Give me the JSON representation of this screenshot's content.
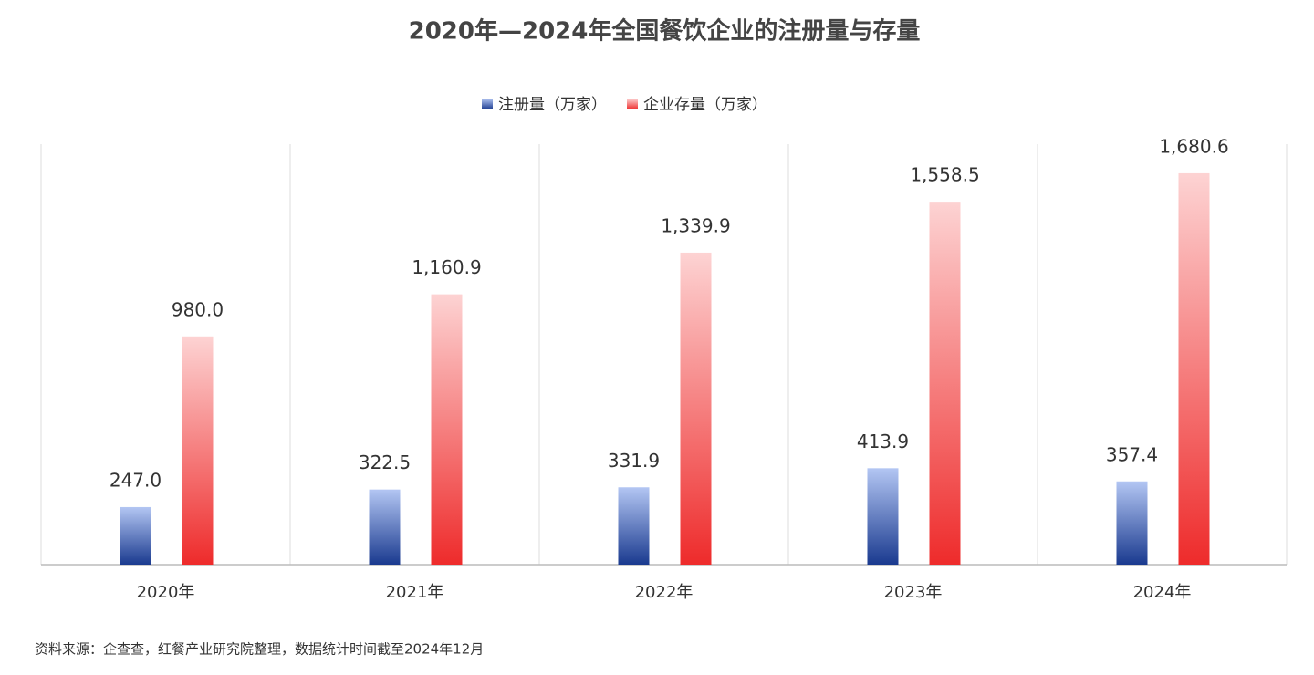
{
  "chart_data": {
    "type": "bar",
    "title": "2020年—2024年全国餐饮企业的注册量与存量",
    "categories": [
      "2020年",
      "2021年",
      "2022年",
      "2023年",
      "2024年"
    ],
    "series": [
      {
        "name": "注册量（万家）",
        "color": "#1a3a8f",
        "values": [
          247.0,
          322.5,
          331.9,
          413.9,
          357.4
        ],
        "value_labels": [
          "247.0",
          "322.5",
          "331.9",
          "413.9",
          "357.4"
        ]
      },
      {
        "name": "企业存量（万家）",
        "color": "#ee2b2b",
        "values": [
          980.0,
          1160.9,
          1339.9,
          1558.5,
          1680.6
        ],
        "value_labels": [
          "980.0",
          "1,160.9",
          "1,339.9",
          "1,558.5",
          "1,680.6"
        ]
      }
    ],
    "source": "资料来源：企查查，红餐产业研究院整理，数据统计时间截至2024年12月"
  }
}
